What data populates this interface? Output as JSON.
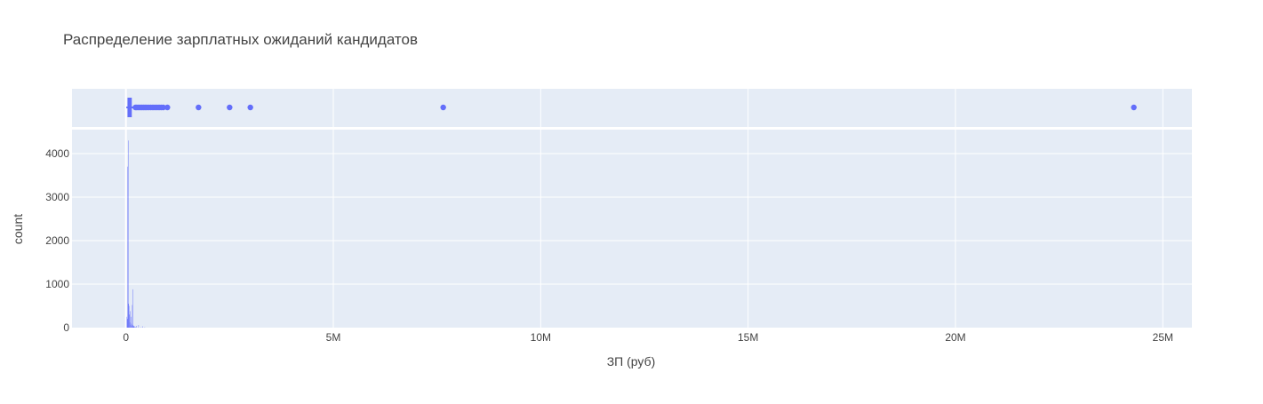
{
  "chart_data": {
    "type": "histogram",
    "title": "Распределение зарплатных ожиданий кандидатов",
    "xlabel": "ЗП (руб)",
    "ylabel": "count",
    "x_range": [
      -1300000,
      25700000
    ],
    "x_ticks": [
      {
        "value": 0,
        "label": "0"
      },
      {
        "value": 5000000,
        "label": "5M"
      },
      {
        "value": 10000000,
        "label": "10M"
      },
      {
        "value": 15000000,
        "label": "15M"
      },
      {
        "value": 20000000,
        "label": "20M"
      },
      {
        "value": 25000000,
        "label": "25M"
      }
    ],
    "y_range": [
      0,
      4550
    ],
    "y_ticks": [
      {
        "value": 0,
        "label": "0"
      },
      {
        "value": 1000,
        "label": "1000"
      },
      {
        "value": 2000,
        "label": "2000"
      },
      {
        "value": 3000,
        "label": "3000"
      },
      {
        "value": 4000,
        "label": "4000"
      }
    ],
    "bar_color": "#636efa",
    "plot_bg": "#e5ecf6",
    "grid": true,
    "histogram": {
      "bins_x": [
        20000,
        30000,
        40000,
        50000,
        60000,
        70000,
        80000,
        90000,
        100000,
        110000,
        120000,
        130000,
        140000,
        150000,
        160000,
        170000,
        180000,
        190000,
        200000,
        220000,
        250000,
        300000,
        350000,
        400000,
        450000
      ],
      "counts": [
        250,
        200,
        3700,
        4300,
        550,
        500,
        300,
        120,
        380,
        60,
        250,
        90,
        40,
        520,
        880,
        60,
        40,
        30,
        30,
        20,
        40,
        60,
        10,
        30,
        10
      ]
    },
    "box": {
      "q1": 60000,
      "median": 80000,
      "q3": 120000,
      "lower_fence": 10000,
      "upper_fence": 210000,
      "outliers": [
        230000,
        260000,
        300000,
        340000,
        380000,
        420000,
        460000,
        500000,
        550000,
        600000,
        650000,
        700000,
        750000,
        800000,
        850000,
        900000,
        1000000,
        1750000,
        2500000,
        3000000,
        7650000,
        24300000
      ]
    }
  }
}
